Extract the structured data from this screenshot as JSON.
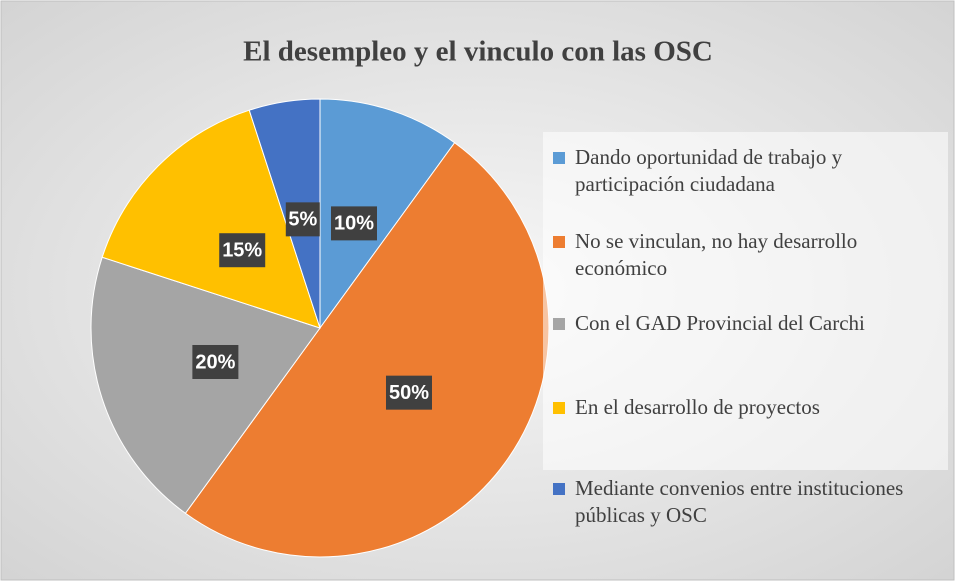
{
  "chart_data": {
    "type": "pie",
    "title": "El desempleo y el vinculo con las OSC",
    "categories": [
      "Dando oportunidad de trabajo  y participación ciudadana",
      "No se vinculan, no hay desarrollo económico",
      "Con el GAD Provincial del Carchi",
      "En el desarrollo de proyectos",
      "Mediante convenios entre instituciones públicas y OSC"
    ],
    "values": [
      10,
      50,
      20,
      15,
      5
    ],
    "value_labels": [
      "10%",
      "50%",
      "20%",
      "15%",
      "5%"
    ],
    "colors": [
      "#5b9bd5",
      "#ed7d31",
      "#a5a5a5",
      "#ffc000",
      "#4472c4"
    ],
    "legend": "right"
  }
}
